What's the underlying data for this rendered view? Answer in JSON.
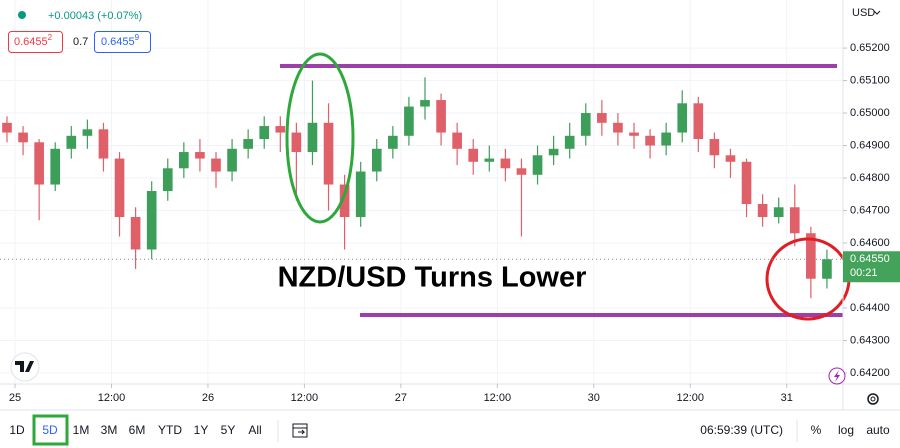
{
  "header": {
    "change": "+0.00043 (+0.07%)",
    "bid": "0.6455",
    "bid_pip": "2",
    "spread": "0.7",
    "ask": "0.6455",
    "ask_pip": "9"
  },
  "currency": "USD",
  "toolbar": {
    "ranges": [
      "1D",
      "5D",
      "1M",
      "3M",
      "6M",
      "YTD",
      "1Y",
      "5Y",
      "All"
    ],
    "clock": "06:59:39 (UTC)",
    "scale_buttons": [
      "%",
      "log",
      "auto"
    ]
  },
  "chart_data": {
    "type": "candlestick",
    "title": "NZD/USD Turns Lower",
    "x": [
      -1,
      1,
      3,
      5,
      7,
      9,
      11,
      13,
      15,
      17,
      19,
      21,
      23,
      25,
      27,
      29,
      31,
      33,
      35,
      37,
      39,
      41,
      43,
      45,
      47,
      49,
      51,
      53,
      55,
      57,
      59,
      61,
      63,
      65,
      67,
      69,
      71,
      73,
      75,
      77,
      79,
      81,
      83,
      85,
      87,
      89,
      91,
      93,
      95,
      97,
      99,
      101
    ],
    "open": [
      0.6497,
      0.6494,
      0.6491,
      0.6478,
      0.6489,
      0.6493,
      0.6495,
      0.6486,
      0.6468,
      0.6458,
      0.6476,
      0.6483,
      0.6488,
      0.6486,
      0.6482,
      0.6489,
      0.6492,
      0.6496,
      0.6494,
      0.6488,
      0.6497,
      0.6478,
      0.6468,
      0.6482,
      0.6489,
      0.6493,
      0.6502,
      0.6504,
      0.6494,
      0.6489,
      0.6485,
      0.6486,
      0.6483,
      0.6481,
      0.6487,
      0.6489,
      0.6493,
      0.65,
      0.6497,
      0.6494,
      0.6493,
      0.649,
      0.6494,
      0.6503,
      0.6492,
      0.6487,
      0.6485,
      0.6472,
      0.6468,
      0.6471,
      0.6463,
      0.6449
    ],
    "high": [
      0.6499,
      0.6496,
      0.6492,
      0.6491,
      0.6496,
      0.6498,
      0.6497,
      0.6488,
      0.6471,
      0.6479,
      0.6486,
      0.6491,
      0.6492,
      0.6488,
      0.6492,
      0.6495,
      0.6499,
      0.6499,
      0.6497,
      0.651,
      0.6503,
      0.6481,
      0.6485,
      0.6492,
      0.6496,
      0.6505,
      0.6511,
      0.6506,
      0.6497,
      0.6492,
      0.649,
      0.6489,
      0.6486,
      0.649,
      0.6493,
      0.6497,
      0.6503,
      0.6504,
      0.65,
      0.6497,
      0.6495,
      0.6497,
      0.6507,
      0.6505,
      0.6494,
      0.6489,
      0.6486,
      0.6475,
      0.6474,
      0.6478,
      0.6465,
      0.6458
    ],
    "low": [
      0.6491,
      0.6487,
      0.6467,
      0.6476,
      0.6486,
      0.6489,
      0.6482,
      0.6462,
      0.6452,
      0.6455,
      0.6473,
      0.648,
      0.6482,
      0.6477,
      0.6479,
      0.6486,
      0.6489,
      0.6488,
      0.6473,
      0.6484,
      0.647,
      0.6458,
      0.6465,
      0.6479,
      0.6486,
      0.649,
      0.6498,
      0.649,
      0.6484,
      0.6481,
      0.6482,
      0.6479,
      0.6462,
      0.6478,
      0.6484,
      0.6486,
      0.649,
      0.6493,
      0.649,
      0.6489,
      0.6486,
      0.6487,
      0.6491,
      0.6488,
      0.6483,
      0.648,
      0.6468,
      0.6465,
      0.6466,
      0.6459,
      0.6443,
      0.6446
    ],
    "close": [
      0.6494,
      0.6491,
      0.6478,
      0.6489,
      0.6493,
      0.6495,
      0.6486,
      0.6468,
      0.6458,
      0.6476,
      0.6483,
      0.6488,
      0.6486,
      0.6482,
      0.6489,
      0.6492,
      0.6496,
      0.6494,
      0.6488,
      0.6497,
      0.6478,
      0.6468,
      0.6482,
      0.6489,
      0.6493,
      0.6502,
      0.6504,
      0.6494,
      0.6489,
      0.6485,
      0.6486,
      0.6483,
      0.6481,
      0.6487,
      0.6489,
      0.6493,
      0.65,
      0.6497,
      0.6494,
      0.6493,
      0.649,
      0.6494,
      0.6503,
      0.6492,
      0.6487,
      0.6485,
      0.6472,
      0.6468,
      0.6471,
      0.6463,
      0.6449,
      0.6455
    ],
    "up_color": "#3d9e5a",
    "down_color": "#e0606a",
    "xlim": [
      -1.87,
      103
    ],
    "xticks": [
      {
        "value": 0,
        "label": "25"
      },
      {
        "value": 12,
        "label": "12:00"
      },
      {
        "value": 24,
        "label": "26"
      },
      {
        "value": 36,
        "label": "12:00"
      },
      {
        "value": 48,
        "label": "27"
      },
      {
        "value": 60,
        "label": "12:00"
      },
      {
        "value": 72,
        "label": "30"
      },
      {
        "value": 84,
        "label": "12:00"
      },
      {
        "value": 96,
        "label": "31"
      }
    ],
    "ylim": [
      0.64166,
      0.65348
    ],
    "yticks": [
      {
        "value": 0.652,
        "label": "0.65200"
      },
      {
        "value": 0.651,
        "label": "0.65100"
      },
      {
        "value": 0.65,
        "label": "0.65000"
      },
      {
        "value": 0.649,
        "label": "0.64900"
      },
      {
        "value": 0.648,
        "label": "0.64800"
      },
      {
        "value": 0.647,
        "label": "0.64700"
      },
      {
        "value": 0.646,
        "label": "0.64600"
      },
      {
        "value": 0.644,
        "label": "0.64400"
      },
      {
        "value": 0.643,
        "label": "0.64300"
      },
      {
        "value": 0.642,
        "label": "0.64200"
      }
    ],
    "grid": true,
    "last_price": {
      "value": 0.6455,
      "label": "0.64550"
    },
    "countdown": "00:21",
    "last_price_color": "#43a35a"
  }
}
